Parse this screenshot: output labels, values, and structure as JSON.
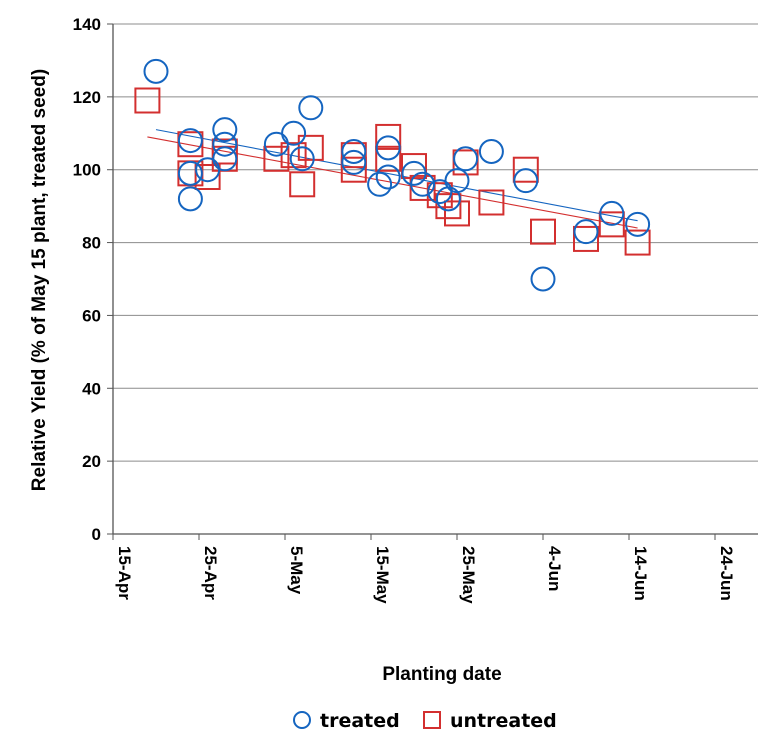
{
  "chart_data": {
    "type": "scatter",
    "title": "",
    "xlabel": "Planting date",
    "ylabel": "Relative Yield (% of May 15 plant, treated seed)",
    "ylim": [
      0,
      140
    ],
    "yticks": [
      0,
      20,
      40,
      60,
      80,
      100,
      120,
      140
    ],
    "xlim": [
      "2000-04-15",
      "2000-06-29"
    ],
    "xticks": [
      {
        "date": "2000-04-15",
        "label": "15-Apr"
      },
      {
        "date": "2000-04-25",
        "label": "25-Apr"
      },
      {
        "date": "2000-05-05",
        "label": "5-May"
      },
      {
        "date": "2000-05-15",
        "label": "15-May"
      },
      {
        "date": "2000-05-25",
        "label": "25-May"
      },
      {
        "date": "2000-06-04",
        "label": "4-Jun"
      },
      {
        "date": "2000-06-14",
        "label": "14-Jun"
      },
      {
        "date": "2000-06-24",
        "label": "24-Jun"
      }
    ],
    "grid": {
      "horizontal": true,
      "vertical": false
    },
    "legend": {
      "position": "bottom"
    },
    "series": [
      {
        "name": "treated",
        "marker": "circle",
        "color": "#1565C0",
        "points": [
          {
            "x": "2000-04-20",
            "y": 127
          },
          {
            "x": "2000-04-24",
            "y": 108
          },
          {
            "x": "2000-04-24",
            "y": 99
          },
          {
            "x": "2000-04-24",
            "y": 92
          },
          {
            "x": "2000-04-26",
            "y": 100
          },
          {
            "x": "2000-04-28",
            "y": 111
          },
          {
            "x": "2000-04-28",
            "y": 107
          },
          {
            "x": "2000-04-28",
            "y": 103
          },
          {
            "x": "2000-05-04",
            "y": 107
          },
          {
            "x": "2000-05-06",
            "y": 110
          },
          {
            "x": "2000-05-07",
            "y": 103
          },
          {
            "x": "2000-05-08",
            "y": 117
          },
          {
            "x": "2000-05-13",
            "y": 105
          },
          {
            "x": "2000-05-13",
            "y": 102
          },
          {
            "x": "2000-05-16",
            "y": 96
          },
          {
            "x": "2000-05-17",
            "y": 106
          },
          {
            "x": "2000-05-17",
            "y": 98
          },
          {
            "x": "2000-05-20",
            "y": 99
          },
          {
            "x": "2000-05-21",
            "y": 96
          },
          {
            "x": "2000-05-23",
            "y": 94
          },
          {
            "x": "2000-05-24",
            "y": 92
          },
          {
            "x": "2000-05-25",
            "y": 97
          },
          {
            "x": "2000-05-26",
            "y": 103
          },
          {
            "x": "2000-05-29",
            "y": 105
          },
          {
            "x": "2000-06-02",
            "y": 97
          },
          {
            "x": "2000-06-04",
            "y": 70
          },
          {
            "x": "2000-06-09",
            "y": 83
          },
          {
            "x": "2000-06-12",
            "y": 88
          },
          {
            "x": "2000-06-15",
            "y": 85
          }
        ],
        "trendline": {
          "from": {
            "x": "2000-04-20",
            "y": 111
          },
          "to": {
            "x": "2000-06-15",
            "y": 86
          }
        }
      },
      {
        "name": "untreated",
        "marker": "square",
        "color": "#D32F2F",
        "points": [
          {
            "x": "2000-04-19",
            "y": 119
          },
          {
            "x": "2000-04-24",
            "y": 107
          },
          {
            "x": "2000-04-24",
            "y": 99
          },
          {
            "x": "2000-04-26",
            "y": 98
          },
          {
            "x": "2000-04-28",
            "y": 105
          },
          {
            "x": "2000-04-28",
            "y": 103
          },
          {
            "x": "2000-05-04",
            "y": 103
          },
          {
            "x": "2000-05-06",
            "y": 104
          },
          {
            "x": "2000-05-07",
            "y": 96
          },
          {
            "x": "2000-05-08",
            "y": 106
          },
          {
            "x": "2000-05-13",
            "y": 104
          },
          {
            "x": "2000-05-13",
            "y": 100
          },
          {
            "x": "2000-05-17",
            "y": 109
          },
          {
            "x": "2000-05-17",
            "y": 103
          },
          {
            "x": "2000-05-20",
            "y": 101
          },
          {
            "x": "2000-05-21",
            "y": 95
          },
          {
            "x": "2000-05-23",
            "y": 93
          },
          {
            "x": "2000-05-24",
            "y": 90
          },
          {
            "x": "2000-05-25",
            "y": 88
          },
          {
            "x": "2000-05-26",
            "y": 102
          },
          {
            "x": "2000-05-29",
            "y": 91
          },
          {
            "x": "2000-06-02",
            "y": 100
          },
          {
            "x": "2000-06-04",
            "y": 83
          },
          {
            "x": "2000-06-09",
            "y": 81
          },
          {
            "x": "2000-06-12",
            "y": 85
          },
          {
            "x": "2000-06-15",
            "y": 80
          }
        ],
        "trendline": {
          "from": {
            "x": "2000-04-19",
            "y": 109
          },
          "to": {
            "x": "2000-06-15",
            "y": 84
          }
        }
      }
    ]
  }
}
